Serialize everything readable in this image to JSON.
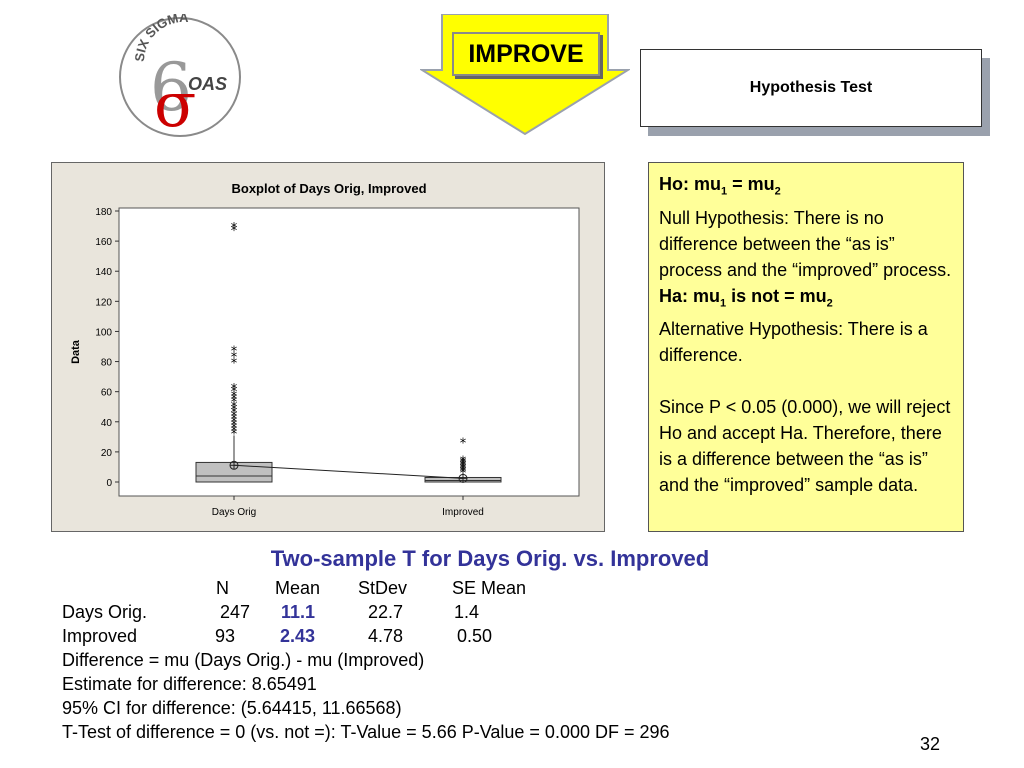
{
  "logo": {
    "top_text": "SIX SIGMA",
    "bottom_text": "OAS",
    "glyphs": "6σ"
  },
  "phase_banner": {
    "label": "IMPROVE"
  },
  "hypothesis_box": {
    "label": "Hypothesis Test"
  },
  "chart_data": {
    "type": "box",
    "title": "Boxplot of Days Orig, Improved",
    "ylabel": "Data",
    "xlabel": "",
    "ylim": [
      0,
      180
    ],
    "yticks": [
      0,
      20,
      40,
      60,
      80,
      100,
      120,
      140,
      160,
      180
    ],
    "categories": [
      "Days Orig",
      "Improved"
    ],
    "boxes": [
      {
        "category": "Days Orig",
        "q1": 0,
        "median": 4,
        "q3": 13,
        "mean": 11.1,
        "whisker_low": 0,
        "whisker_high": 31,
        "outliers": [
          33,
          35,
          37,
          39,
          41,
          43,
          45,
          47,
          49,
          51,
          54,
          56,
          58,
          61,
          63,
          80,
          84,
          88,
          168,
          170
        ]
      },
      {
        "category": "Improved",
        "q1": 0,
        "median": 1,
        "q3": 3,
        "mean": 2.43,
        "whisker_low": 0,
        "whisker_high": 6,
        "outliers": [
          7,
          8,
          9,
          10,
          11,
          12,
          13,
          14,
          15,
          27
        ]
      }
    ],
    "grid": false,
    "mean_connect_line": true
  },
  "hypothesis_note": {
    "ho_label": "Ho: mu",
    "ho_sub1": "1",
    "ho_eq": " = mu",
    "ho_sub2": "2",
    "ho_text": "Null Hypothesis: There is no difference between the “as is” process and the “improved” process.",
    "ha_label": "Ha: mu",
    "ha_sub1": "1",
    "ha_eq": " is not = mu",
    "ha_sub2": "2",
    "ha_text": "Alternative Hypothesis: There is a difference.",
    "conclusion": "Since P < 0.05 (0.000), we will reject Ho and accept Ha. Therefore, there is a difference between the “as is” and the “improved” sample data."
  },
  "stats": {
    "title": "Two-sample T for Days Orig. vs. Improved",
    "headers": {
      "n": "N",
      "mean": "Mean",
      "stdev": "StDev",
      "se": "SE Mean"
    },
    "rows": [
      {
        "name": "Days Orig.",
        "n": "247",
        "mean": "11.1",
        "stdev": "22.7",
        "se": "1.4"
      },
      {
        "name": "Improved",
        "n": "93",
        "mean": "2.43",
        "stdev": "4.78",
        "se": "0.50"
      }
    ],
    "lines": [
      "Difference = mu (Days Orig.) - mu (Improved)",
      "Estimate for difference:  8.65491",
      "95% CI for difference:  (5.64415, 11.66568)",
      "T-Test of difference = 0 (vs. not =): T-Value = 5.66  P-Value = 0.000  DF = 296"
    ]
  },
  "page_number": "32",
  "colors": {
    "accent_blue": "#333399",
    "banner_yellow": "#ffff00",
    "note_yellow": "#ffff99",
    "chart_bg": "#e9e5dc",
    "box_fill": "#c0c0c0"
  }
}
